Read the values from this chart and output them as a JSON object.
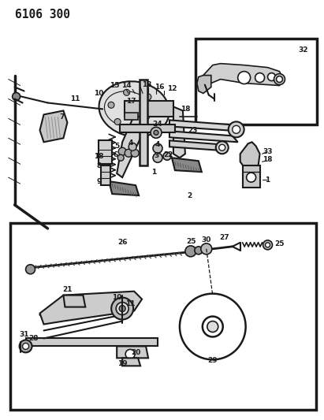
{
  "title": "6106 300",
  "bg_color": "#ffffff",
  "lc": "#1a1a1a",
  "fig_width": 4.11,
  "fig_height": 5.33,
  "dpi": 100,
  "label_fontsize": 6.5,
  "title_fontsize": 10.5
}
